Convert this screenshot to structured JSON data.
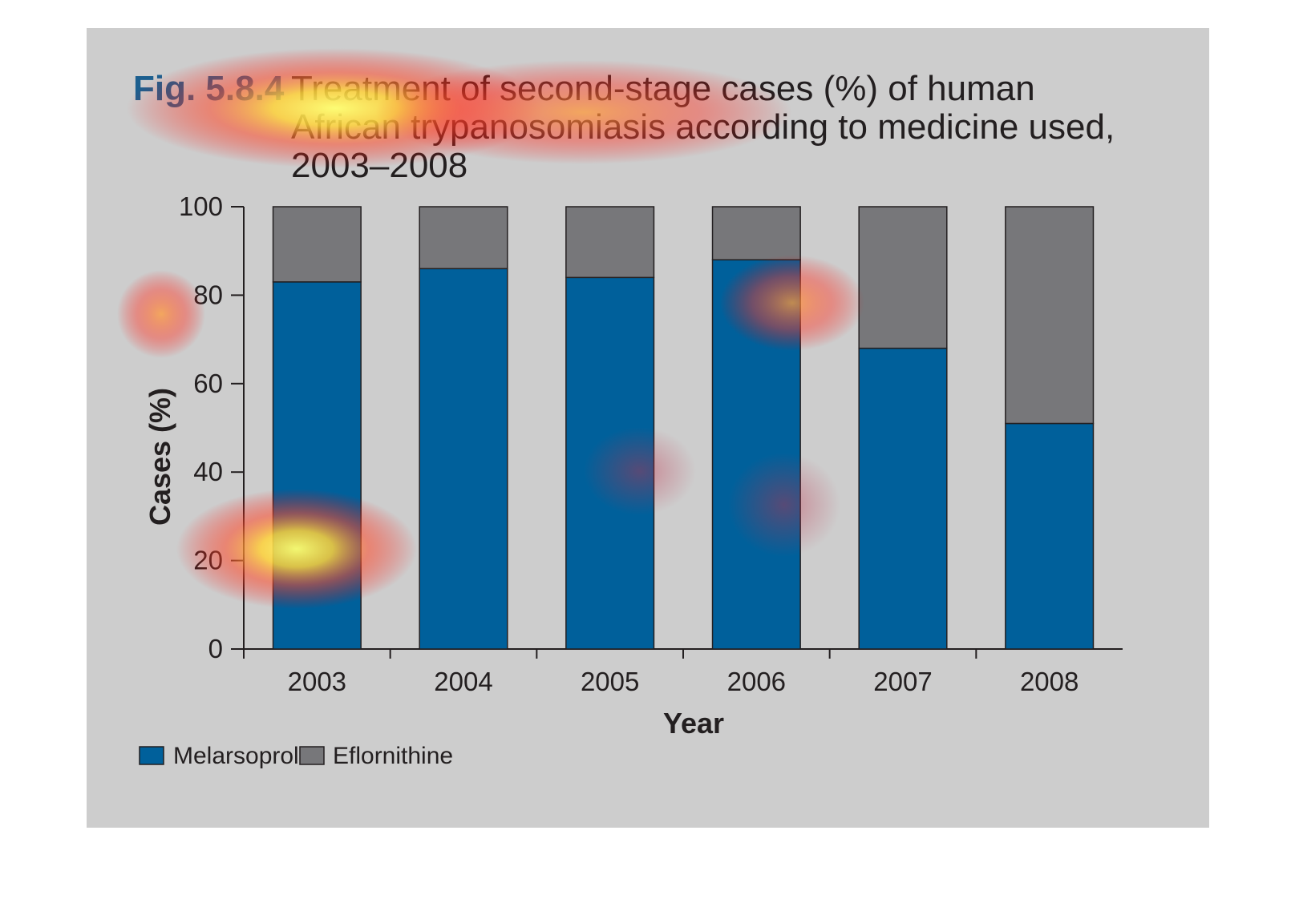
{
  "figure": {
    "label": "Fig. 5.8.4",
    "title_lines": [
      "Treatment of second-stage cases (%) of human",
      "African trypanosomiasis according to medicine used,",
      "2003–2008"
    ]
  },
  "chart_data": {
    "type": "bar",
    "stacked": true,
    "categories": [
      "2003",
      "2004",
      "2005",
      "2006",
      "2007",
      "2008"
    ],
    "series": [
      {
        "name": "Melarsoprol",
        "color": "#00609b",
        "values": [
          83,
          86,
          84,
          88,
          68,
          51
        ]
      },
      {
        "name": "Eflornithine",
        "color": "#77777a",
        "values": [
          17,
          14,
          16,
          12,
          32,
          49
        ]
      }
    ],
    "xlabel": "Year",
    "ylabel": "Cases (%)",
    "ylim": [
      0,
      100
    ],
    "yticks": [
      0,
      20,
      40,
      60,
      80,
      100
    ],
    "legend_position": "bottom-left",
    "grid": false
  },
  "colors": {
    "panel_background": "#cdcdcd",
    "figure_label": "#1c5f8f",
    "text": "#231f20"
  },
  "overlay": "attention heatmap"
}
